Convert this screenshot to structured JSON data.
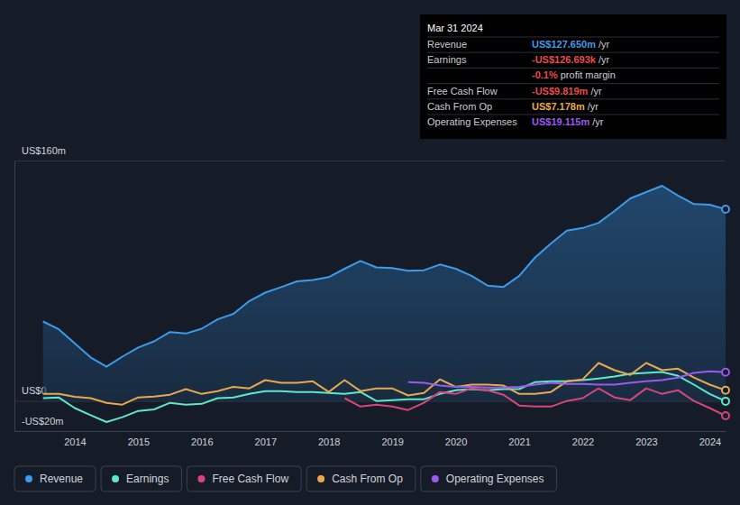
{
  "chart_data": {
    "type": "line",
    "x": [
      2013.5,
      2013.75,
      2014,
      2014.25,
      2014.5,
      2014.75,
      2015,
      2015.25,
      2015.5,
      2015.75,
      2016,
      2016.25,
      2016.5,
      2016.75,
      2017,
      2017.25,
      2017.5,
      2017.75,
      2018,
      2018.25,
      2018.5,
      2018.75,
      2019,
      2019.25,
      2019.5,
      2019.75,
      2020,
      2020.25,
      2020.5,
      2020.75,
      2021,
      2021.25,
      2021.5,
      2021.75,
      2022,
      2022.25,
      2022.5,
      2022.75,
      2023,
      2023.25,
      2023.5,
      2023.75,
      2024,
      2024.25
    ],
    "series": [
      {
        "name": "Revenue",
        "color": "#3d9be9",
        "type": "area",
        "values": [
          52.9,
          47.7,
          38.4,
          29,
          22.8,
          29.5,
          35.6,
          39.7,
          45.9,
          44.9,
          48.1,
          54.3,
          58,
          66.5,
          72.1,
          75.8,
          79.6,
          80.5,
          82.4,
          88,
          93.2,
          88.9,
          88.5,
          86.6,
          87,
          90.8,
          88,
          83.3,
          76.8,
          75.8,
          83.3,
          95.5,
          104.8,
          113.3,
          115.1,
          118.5,
          126.4,
          134.8,
          139,
          143.2,
          136.7,
          131,
          130.6,
          127.65
        ]
      },
      {
        "name": "Earnings",
        "color": "#5ee8c8",
        "type": "line",
        "values": [
          1.9,
          2.3,
          -4.7,
          -9.4,
          -14,
          -10.8,
          -6.6,
          -5.6,
          -1.2,
          -2.4,
          -1.9,
          1.9,
          2.3,
          4.7,
          6.6,
          6.6,
          6,
          6,
          5.4,
          4.7,
          6,
          0,
          0.6,
          1.2,
          1.2,
          4.7,
          7.2,
          7.9,
          7.2,
          7.9,
          7.9,
          12.6,
          13.1,
          13.1,
          13.9,
          15,
          16.3,
          18.1,
          18.7,
          19.3,
          16.8,
          10.9,
          4.7,
          -0.127
        ]
      },
      {
        "name": "Free Cash Flow",
        "color": "#d6467b",
        "type": "line",
        "values": [
          null,
          null,
          null,
          null,
          null,
          null,
          null,
          null,
          null,
          null,
          null,
          null,
          null,
          null,
          null,
          null,
          null,
          null,
          null,
          1.9,
          -3.7,
          -2.4,
          -3.7,
          -6,
          -1.2,
          6,
          4.7,
          8.4,
          7.2,
          4.2,
          -3,
          -3.7,
          -3.7,
          0,
          1.9,
          8.4,
          2.4,
          0.6,
          8.4,
          4.7,
          7.2,
          0,
          -4.7,
          -9.819
        ]
      },
      {
        "name": "Cash From Op",
        "color": "#e8a94e",
        "type": "line",
        "values": [
          4.7,
          4.7,
          2.8,
          1.9,
          -1.2,
          -2.4,
          2.4,
          3,
          4.2,
          7.9,
          4.7,
          6.6,
          9.4,
          8.4,
          13.9,
          12.1,
          12.1,
          13.1,
          6,
          13.9,
          6.6,
          8.4,
          8.4,
          3.7,
          5.4,
          14.4,
          9.4,
          10.9,
          10.9,
          10.3,
          4.7,
          4.7,
          6,
          13.1,
          14.4,
          25.3,
          20.5,
          17.4,
          25.3,
          20.5,
          21.5,
          15.6,
          10.9,
          7.178
        ]
      },
      {
        "name": "Operating Expenses",
        "color": "#9b59f0",
        "type": "line",
        "values": [
          null,
          null,
          null,
          null,
          null,
          null,
          null,
          null,
          null,
          null,
          null,
          null,
          null,
          null,
          null,
          null,
          null,
          null,
          null,
          null,
          null,
          null,
          null,
          12.6,
          12.1,
          10.3,
          9.4,
          9.4,
          9,
          9,
          9.4,
          10.9,
          12.1,
          11.4,
          11.4,
          10.9,
          10.9,
          12.1,
          13.1,
          13.9,
          15.6,
          18.7,
          19.7,
          19.115
        ]
      }
    ],
    "xlim": [
      2013.05,
      2024.25
    ],
    "xticks": [
      2014,
      2015,
      2016,
      2017,
      2018,
      2019,
      2020,
      2021,
      2022,
      2023,
      2024
    ],
    "ylim": [
      -20,
      160
    ],
    "yticks": [
      {
        "value": -20,
        "label": "-US$20m"
      },
      {
        "value": 0,
        "label": "US$0"
      },
      {
        "value": 160,
        "label": "US$160m"
      }
    ],
    "grid": true,
    "legend": "bottom"
  },
  "tooltip": {
    "title": "Mar 31 2024",
    "rows": [
      {
        "label": "Revenue",
        "value": "US$127.650m",
        "suffix": "/yr",
        "color": "#3d9be9"
      },
      {
        "label": "Earnings",
        "value": "-US$126.693k",
        "suffix": "/yr",
        "color": "#e84b4b"
      },
      {
        "value": "-0.1%",
        "suffix": "profit margin",
        "color": "#e84b4b"
      },
      {
        "label": "Free Cash Flow",
        "value": "-US$9.819m",
        "suffix": "/yr",
        "color": "#e84b4b"
      },
      {
        "label": "Cash From Op",
        "value": "US$7.178m",
        "suffix": "/yr",
        "color": "#e8a94e"
      },
      {
        "label": "Operating Expenses",
        "value": "US$19.115m",
        "suffix": "/yr",
        "color": "#9b59f0"
      }
    ]
  }
}
